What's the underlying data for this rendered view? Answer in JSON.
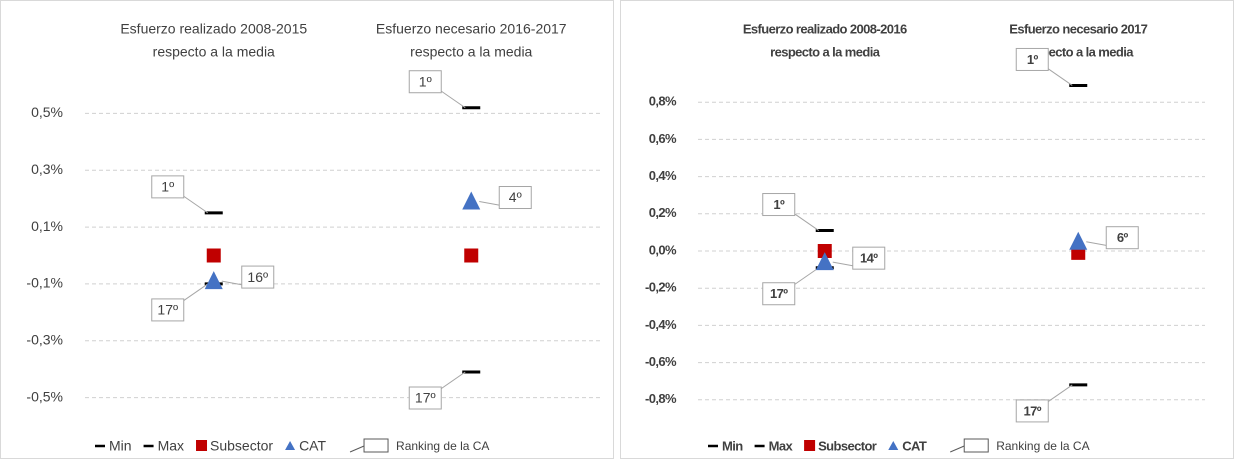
{
  "chart_data": [
    {
      "type": "scatter",
      "categories": [
        [
          "Esfuerzo realizado 2008-2015",
          "respecto a la media"
        ],
        [
          "Esfuerzo necesario 2016-2017",
          "respecto a la media"
        ]
      ],
      "ylim": [
        -0.6,
        0.6
      ],
      "yticks": [
        {
          "value": 0.5,
          "label": "0,5%"
        },
        {
          "value": 0.3,
          "label": "0,3%"
        },
        {
          "value": 0.1,
          "label": "0,1%"
        },
        {
          "value": -0.1,
          "label": "-0,1%"
        },
        {
          "value": -0.3,
          "label": "-0,3%"
        },
        {
          "value": -0.5,
          "label": "-0,5%"
        }
      ],
      "grid": true,
      "legend": "bottom",
      "ranking_legend": "Ranking de la CA",
      "series": [
        {
          "name": "Min",
          "color": "#000000",
          "marker": "dash",
          "values": [
            -0.1,
            -0.41
          ],
          "ranking_labels": [
            "17º",
            "17º"
          ]
        },
        {
          "name": "Max",
          "color": "#000000",
          "marker": "dash",
          "values": [
            0.15,
            0.52
          ],
          "ranking_labels": [
            "1º",
            "1º"
          ]
        },
        {
          "name": "Subsector",
          "color": "#c00000",
          "marker": "square",
          "values": [
            0.0,
            0.0
          ]
        },
        {
          "name": "CAT",
          "color": "#4472c4",
          "marker": "triangle",
          "values": [
            -0.09,
            0.19
          ],
          "ranking_labels": [
            "16º",
            "4º"
          ]
        }
      ]
    },
    {
      "type": "scatter",
      "categories": [
        [
          "Esfuerzo realizado 2008-2016",
          "respecto a la media"
        ],
        [
          "Esfuerzo necesario 2017",
          "respecto a la media"
        ]
      ],
      "ylim": [
        -1.0,
        1.0
      ],
      "yticks": [
        {
          "value": 0.8,
          "label": "0,8%"
        },
        {
          "value": 0.6,
          "label": "0,6%"
        },
        {
          "value": 0.4,
          "label": "0,4%"
        },
        {
          "value": 0.2,
          "label": "0,2%"
        },
        {
          "value": 0.0,
          "label": "0,0%"
        },
        {
          "value": -0.2,
          "label": "-0,2%"
        },
        {
          "value": -0.4,
          "label": "-0,4%"
        },
        {
          "value": -0.6,
          "label": "-0,6%"
        },
        {
          "value": -0.8,
          "label": "-0,8%"
        }
      ],
      "grid": true,
      "legend": "bottom",
      "ranking_legend": "Ranking de la CA",
      "series": [
        {
          "name": "Min",
          "color": "#000000",
          "marker": "dash",
          "values": [
            -0.09,
            -0.72
          ],
          "ranking_labels": [
            "17º",
            "17º"
          ]
        },
        {
          "name": "Max",
          "color": "#000000",
          "marker": "dash",
          "values": [
            0.11,
            0.89
          ],
          "ranking_labels": [
            "1º",
            "1º"
          ]
        },
        {
          "name": "Subsector",
          "color": "#c00000",
          "marker": "square",
          "values": [
            0.0,
            -0.01
          ]
        },
        {
          "name": "CAT",
          "color": "#4472c4",
          "marker": "triangle",
          "values": [
            -0.06,
            0.05
          ],
          "ranking_labels": [
            "14º",
            "6º"
          ]
        }
      ]
    }
  ]
}
